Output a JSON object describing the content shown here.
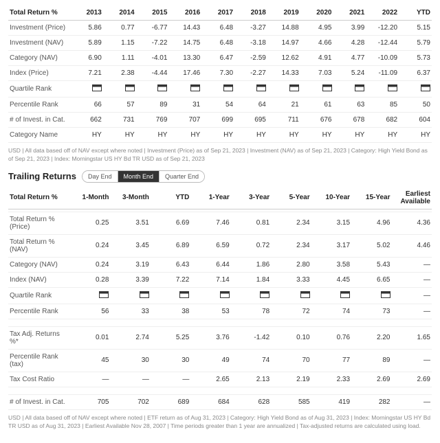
{
  "table1": {
    "header": [
      "Total Return %",
      "2013",
      "2014",
      "2015",
      "2016",
      "2017",
      "2018",
      "2019",
      "2020",
      "2021",
      "2022",
      "YTD"
    ],
    "rows": [
      {
        "label": "Investment (Price)",
        "cells": [
          "5.86",
          "0.77",
          "-6.77",
          "14.43",
          "6.48",
          "-3.27",
          "14.88",
          "4.95",
          "3.99",
          "-12.20",
          "5.15"
        ]
      },
      {
        "label": "Investment (NAV)",
        "cells": [
          "5.89",
          "1.15",
          "-7.22",
          "14.75",
          "6.48",
          "-3.18",
          "14.97",
          "4.66",
          "4.28",
          "-12.44",
          "5.79"
        ]
      },
      {
        "label": "Category (NAV)",
        "cells": [
          "6.90",
          "1.11",
          "-4.01",
          "13.30",
          "6.47",
          "-2.59",
          "12.62",
          "4.91",
          "4.77",
          "-10.09",
          "5.73"
        ]
      },
      {
        "label": "Index (Price)",
        "cells": [
          "7.21",
          "2.38",
          "-4.44",
          "17.46",
          "7.30",
          "-2.27",
          "14.33",
          "7.03",
          "5.24",
          "-11.09",
          "6.37"
        ]
      },
      {
        "label": "Quartile Rank",
        "quartile": true,
        "cells": [
          "q",
          "q",
          "q",
          "q",
          "q",
          "q",
          "q",
          "q",
          "q",
          "q",
          "q"
        ]
      },
      {
        "label": "Percentile Rank",
        "cells": [
          "66",
          "57",
          "89",
          "31",
          "54",
          "64",
          "21",
          "61",
          "63",
          "85",
          "50"
        ]
      },
      {
        "label": "# of Invest. in Cat.",
        "cells": [
          "662",
          "731",
          "769",
          "707",
          "699",
          "695",
          "711",
          "676",
          "678",
          "682",
          "604"
        ]
      },
      {
        "label": "Category Name",
        "cells": [
          "HY",
          "HY",
          "HY",
          "HY",
          "HY",
          "HY",
          "HY",
          "HY",
          "HY",
          "HY",
          "HY"
        ]
      }
    ],
    "footnote": "USD | All data based off of NAV except where noted | Investment (Price) as of Sep 21, 2023 | Investment (NAV) as of Sep 21, 2023 | Category: High Yield Bond as of Sep 21, 2023 | Index: Morningstar US HY Bd TR USD as of Sep 21, 2023"
  },
  "section2": {
    "title": "Trailing Returns",
    "tabs": [
      "Day End",
      "Month End",
      "Quarter End"
    ],
    "activeTab": 1
  },
  "table2": {
    "header": [
      "Total Return %",
      "1-Month",
      "3-Month",
      "YTD",
      "1-Year",
      "3-Year",
      "5-Year",
      "10-Year",
      "15-Year",
      "Earliest Available"
    ],
    "groups": [
      [
        {
          "label": "Total Return % (Price)",
          "cells": [
            "0.25",
            "3.51",
            "6.69",
            "7.46",
            "0.81",
            "2.34",
            "3.15",
            "4.96",
            "4.36"
          ]
        },
        {
          "label": "Total Return % (NAV)",
          "cells": [
            "0.24",
            "3.45",
            "6.89",
            "6.59",
            "0.72",
            "2.34",
            "3.17",
            "5.02",
            "4.46"
          ]
        },
        {
          "label": "Category (NAV)",
          "cells": [
            "0.24",
            "3.19",
            "6.43",
            "6.44",
            "1.86",
            "2.80",
            "3.58",
            "5.43",
            "—"
          ]
        },
        {
          "label": "Index (NAV)",
          "cells": [
            "0.28",
            "3.39",
            "7.22",
            "7.14",
            "1.84",
            "3.33",
            "4.45",
            "6.65",
            "—"
          ]
        },
        {
          "label": "Quartile Rank",
          "quartile": true,
          "cells": [
            "q",
            "q",
            "q",
            "q",
            "q",
            "q",
            "q",
            "q",
            "—"
          ]
        },
        {
          "label": "Percentile Rank",
          "cells": [
            "56",
            "33",
            "38",
            "53",
            "78",
            "72",
            "74",
            "73",
            "—"
          ]
        }
      ],
      [
        {
          "label": "Tax Adj. Returns %*",
          "cells": [
            "0.01",
            "2.74",
            "5.25",
            "3.76",
            "-1.42",
            "0.10",
            "0.76",
            "2.20",
            "1.65"
          ]
        },
        {
          "label": "Percentile Rank (tax)",
          "cells": [
            "45",
            "30",
            "30",
            "49",
            "74",
            "70",
            "77",
            "89",
            "—"
          ]
        },
        {
          "label": "Tax Cost Ratio",
          "cells": [
            "—",
            "—",
            "—",
            "2.65",
            "2.13",
            "2.19",
            "2.33",
            "2.69",
            "2.69"
          ]
        }
      ],
      [
        {
          "label": "# of Invest. in Cat.",
          "cells": [
            "705",
            "702",
            "689",
            "684",
            "628",
            "585",
            "419",
            "282",
            "—"
          ]
        }
      ]
    ],
    "footnote": "USD | All data based off of NAV except where noted | ETF return as of Aug 31, 2023 | Category: High Yield Bond as of Aug 31, 2023 | Index: Morningstar US HY Bd TR USD as of Aug 31, 2023 | Earliest Available Nov 28, 2007 | Time periods greater than 1 year are annualized | Tax-adjusted returns are calculated using load."
  }
}
